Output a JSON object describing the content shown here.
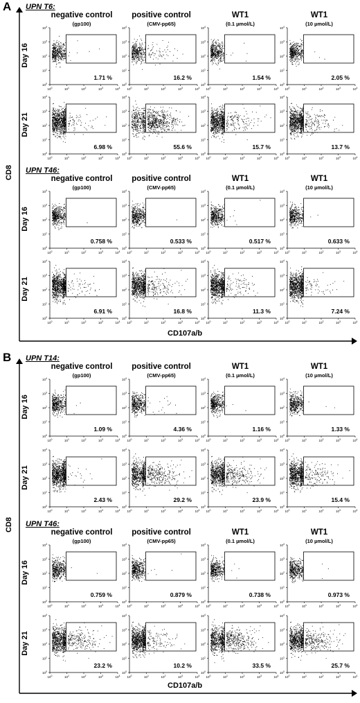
{
  "figure": {
    "panels": [
      {
        "letter": "A",
        "y_axis": "CD8",
        "x_axis": "CD107a/b",
        "patients": [
          {
            "title": "UPN T6:",
            "columns": [
              {
                "title": "negative control",
                "sub": "(gp100)"
              },
              {
                "title": "positive control",
                "sub": "(CMV-pp65)"
              },
              {
                "title": "WT1",
                "sub": "(0.1 µmol/L)"
              },
              {
                "title": "WT1",
                "sub": "(10 µmol/L)"
              }
            ],
            "rows": [
              {
                "label": "Day 16",
                "values": [
                  "1.71 %",
                  "16.2 %",
                  "1.54 %",
                  "2.05 %"
                ]
              },
              {
                "label": "Day 21",
                "values": [
                  "6.98 %",
                  "55.6 %",
                  "15.7 %",
                  "13.7 %"
                ]
              }
            ]
          },
          {
            "title": "UPN T46:",
            "columns": [
              {
                "title": "negative control",
                "sub": "(gp100)"
              },
              {
                "title": "positive control",
                "sub": "(CMV-pp65)"
              },
              {
                "title": "WT1",
                "sub": "(0.1 µmol/L)"
              },
              {
                "title": "WT1",
                "sub": "(10 µmol/L)"
              }
            ],
            "rows": [
              {
                "label": "Day 16",
                "values": [
                  "0.758 %",
                  "0.533 %",
                  "0.517 %",
                  "0.633 %"
                ]
              },
              {
                "label": "Day 21",
                "values": [
                  "6.91 %",
                  "16.8 %",
                  "11.3 %",
                  "7.24 %"
                ]
              }
            ]
          }
        ]
      },
      {
        "letter": "B",
        "y_axis": "CD8",
        "x_axis": "CD107a/b",
        "patients": [
          {
            "title": "UPN T14:",
            "columns": [
              {
                "title": "negative control",
                "sub": "(gp100)"
              },
              {
                "title": "positive control",
                "sub": "(CMV-pp65)"
              },
              {
                "title": "WT1",
                "sub": "(0.1 µmol/L)"
              },
              {
                "title": "WT1",
                "sub": "(10 µmol/L)"
              }
            ],
            "rows": [
              {
                "label": "Day 16",
                "values": [
                  "1.09 %",
                  "4.36 %",
                  "1.16 %",
                  "1.33 %"
                ]
              },
              {
                "label": "Day 21",
                "values": [
                  "2.43 %",
                  "29.2 %",
                  "23.9 %",
                  "15.4 %"
                ]
              }
            ]
          },
          {
            "title": "UPN T46:",
            "columns": [
              {
                "title": "negative control",
                "sub": "(gp100)"
              },
              {
                "title": "positive control",
                "sub": "(CMV-pp65)"
              },
              {
                "title": "WT1",
                "sub": "(0.1 µmol/L)"
              },
              {
                "title": "WT1",
                "sub": "(10 µmol/L)"
              }
            ],
            "rows": [
              {
                "label": "Day 16",
                "values": [
                  "0.759 %",
                  "0.879 %",
                  "0.738 %",
                  "0.973 %"
                ]
              },
              {
                "label": "Day 21",
                "values": [
                  "23.2 %",
                  "10.2 %",
                  "33.5 %",
                  "25.7 %"
                ]
              }
            ]
          }
        ]
      }
    ]
  },
  "chart_data": [
    {
      "type": "scatter",
      "panel": "A",
      "patient": "UPN T6:",
      "xlabel": "CD107a/b",
      "ylabel": "CD8",
      "axis_scale": "log",
      "tick_labels": [
        "10^0",
        "10^1",
        "10^2",
        "10^3",
        "10^4"
      ],
      "categories": [
        "negative control (gp100)",
        "positive control (CMV-pp65)",
        "WT1 (0.1 µmol/L)",
        "WT1 (10 µmol/L)"
      ],
      "series": [
        {
          "name": "Day 16",
          "values": [
            1.71,
            16.2,
            1.54,
            2.05
          ]
        },
        {
          "name": "Day 21",
          "values": [
            6.98,
            55.6,
            15.7,
            13.7
          ]
        }
      ]
    },
    {
      "type": "scatter",
      "panel": "A",
      "patient": "UPN T46:",
      "xlabel": "CD107a/b",
      "ylabel": "CD8",
      "axis_scale": "log",
      "tick_labels": [
        "10^0",
        "10^1",
        "10^2",
        "10^3",
        "10^4"
      ],
      "categories": [
        "negative control (gp100)",
        "positive control (CMV-pp65)",
        "WT1 (0.1 µmol/L)",
        "WT1 (10 µmol/L)"
      ],
      "series": [
        {
          "name": "Day 16",
          "values": [
            0.758,
            0.533,
            0.517,
            0.633
          ]
        },
        {
          "name": "Day 21",
          "values": [
            6.91,
            16.8,
            11.3,
            7.24
          ]
        }
      ]
    },
    {
      "type": "scatter",
      "panel": "B",
      "patient": "UPN T14:",
      "xlabel": "CD107a/b",
      "ylabel": "CD8",
      "axis_scale": "log",
      "tick_labels": [
        "10^0",
        "10^1",
        "10^2",
        "10^3",
        "10^4"
      ],
      "categories": [
        "negative control (gp100)",
        "positive control (CMV-pp65)",
        "WT1 (0.1 µmol/L)",
        "WT1 (10 µmol/L)"
      ],
      "series": [
        {
          "name": "Day 16",
          "values": [
            1.09,
            4.36,
            1.16,
            1.33
          ]
        },
        {
          "name": "Day 21",
          "values": [
            2.43,
            29.2,
            23.9,
            15.4
          ]
        }
      ]
    },
    {
      "type": "scatter",
      "panel": "B",
      "patient": "UPN T46:",
      "xlabel": "CD107a/b",
      "ylabel": "CD8",
      "axis_scale": "log",
      "tick_labels": [
        "10^0",
        "10^1",
        "10^2",
        "10^3",
        "10^4"
      ],
      "categories": [
        "negative control (gp100)",
        "positive control (CMV-pp65)",
        "WT1 (0.1 µmol/L)",
        "WT1 (10 µmol/L)"
      ],
      "series": [
        {
          "name": "Day 16",
          "values": [
            0.759,
            0.879,
            0.738,
            0.973
          ]
        },
        {
          "name": "Day 21",
          "values": [
            23.2,
            10.2,
            33.5,
            25.7
          ]
        }
      ]
    }
  ]
}
